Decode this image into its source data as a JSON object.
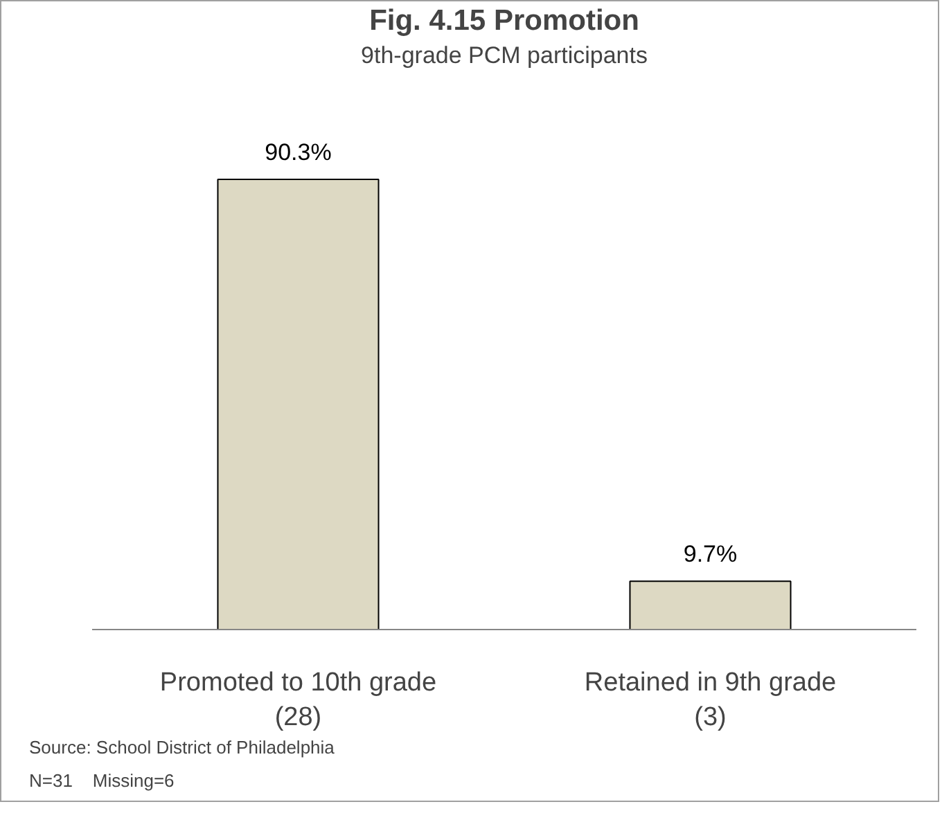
{
  "chart_data": {
    "type": "bar",
    "title": "Fig. 4.15 Promotion",
    "subtitle": "9th-grade PCM participants",
    "categories": [
      "Promoted to 10th grade\n(28)",
      "Retained in 9th grade\n(3)"
    ],
    "values": [
      90.3,
      9.7
    ],
    "value_labels": [
      "90.3%",
      "9.7%"
    ],
    "color": "#ddd9c3",
    "grid": false,
    "annotations": [
      "Source: School District of Philadelphia",
      "N=31    Missing=6"
    ]
  }
}
